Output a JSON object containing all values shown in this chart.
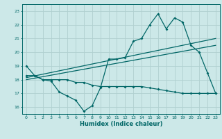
{
  "xlabel": "Humidex (Indice chaleur)",
  "background_color": "#cce8e8",
  "grid_color": "#b0d0d0",
  "line_color": "#006666",
  "xlim": [
    -0.5,
    23.5
  ],
  "ylim": [
    15.5,
    23.5
  ],
  "yticks": [
    16,
    17,
    18,
    19,
    20,
    21,
    22,
    23
  ],
  "xticks": [
    0,
    1,
    2,
    3,
    4,
    5,
    6,
    7,
    8,
    9,
    10,
    11,
    12,
    13,
    14,
    15,
    16,
    17,
    18,
    19,
    20,
    21,
    22,
    23
  ],
  "series_main_x": [
    0,
    1,
    2,
    3,
    4,
    5,
    6,
    7,
    8,
    9,
    10,
    11,
    12,
    13,
    14,
    15,
    16,
    17,
    18,
    19,
    20,
    21,
    22,
    23
  ],
  "series_main_y": [
    19.0,
    18.3,
    18.0,
    17.9,
    17.1,
    16.8,
    16.5,
    15.7,
    16.1,
    17.4,
    19.5,
    19.5,
    19.6,
    20.8,
    21.0,
    22.0,
    22.8,
    21.7,
    22.5,
    22.2,
    20.5,
    20.0,
    18.5,
    17.0
  ],
  "series_low_x": [
    0,
    1,
    2,
    3,
    4,
    5,
    6,
    7,
    8,
    9,
    10,
    11,
    12,
    13,
    14,
    15,
    16,
    17,
    18,
    19,
    20,
    21,
    22,
    23
  ],
  "series_low_y": [
    18.3,
    18.3,
    18.0,
    18.0,
    18.0,
    18.0,
    17.8,
    17.8,
    17.6,
    17.5,
    17.5,
    17.5,
    17.5,
    17.5,
    17.5,
    17.4,
    17.3,
    17.2,
    17.1,
    17.0,
    17.0,
    17.0,
    17.0,
    17.0
  ],
  "trend1_x": [
    0,
    23
  ],
  "trend1_y": [
    18.15,
    21.0
  ],
  "trend2_x": [
    0,
    23
  ],
  "trend2_y": [
    18.0,
    20.5
  ],
  "figwidth": 3.2,
  "figheight": 2.0,
  "dpi": 100
}
